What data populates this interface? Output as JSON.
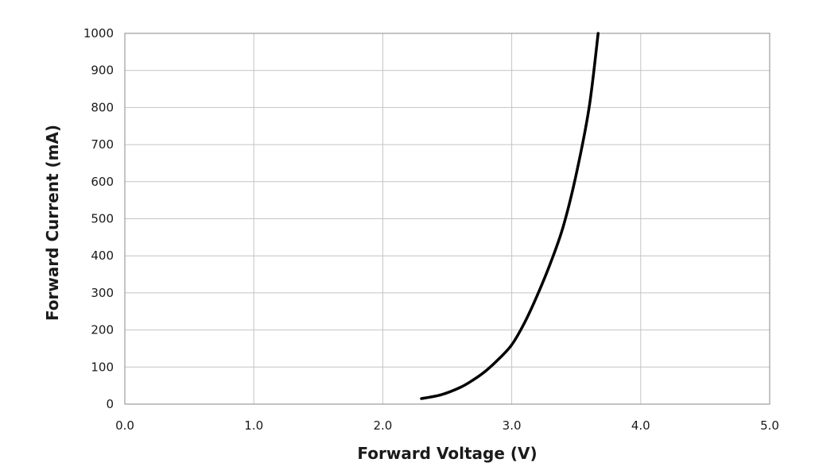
{
  "chart_data": {
    "type": "line",
    "title": "",
    "xlabel": "Forward Voltage (V)",
    "ylabel": "Forward Current (mA)",
    "xlim": [
      0,
      5
    ],
    "ylim": [
      0,
      1000
    ],
    "x_ticks": [
      "0.0",
      "1.0",
      "2.0",
      "3.0",
      "4.0",
      "5.0"
    ],
    "y_ticks": [
      "0",
      "100",
      "200",
      "300",
      "400",
      "500",
      "600",
      "700",
      "800",
      "900",
      "1000"
    ],
    "grid": true,
    "legend": "none",
    "series": [
      {
        "color": "#000000",
        "points": [
          {
            "x": 2.3,
            "y": 15
          },
          {
            "x": 2.45,
            "y": 25
          },
          {
            "x": 2.6,
            "y": 45
          },
          {
            "x": 2.7,
            "y": 65
          },
          {
            "x": 2.8,
            "y": 90
          },
          {
            "x": 2.9,
            "y": 122
          },
          {
            "x": 3.0,
            "y": 160
          },
          {
            "x": 3.1,
            "y": 220
          },
          {
            "x": 3.2,
            "y": 295
          },
          {
            "x": 3.3,
            "y": 380
          },
          {
            "x": 3.4,
            "y": 480
          },
          {
            "x": 3.5,
            "y": 620
          },
          {
            "x": 3.6,
            "y": 800
          },
          {
            "x": 3.67,
            "y": 1000
          }
        ]
      }
    ]
  }
}
